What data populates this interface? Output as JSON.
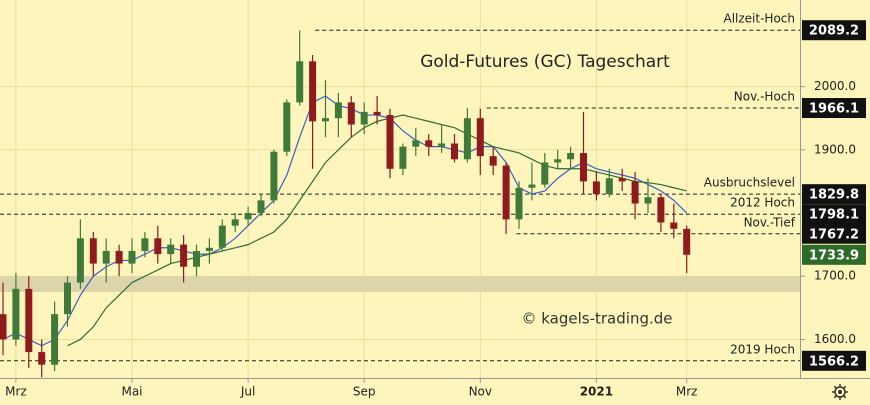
{
  "chart_data": {
    "type": "candlestick",
    "title": "Gold-Futures (GC) Tageschart",
    "watermark": "© kagels-trading.de",
    "categories": [
      null,
      "Mrz",
      null,
      null,
      null,
      null,
      null,
      null,
      null,
      null,
      "Mai",
      null,
      null,
      null,
      null,
      null,
      null,
      null,
      null,
      "Jul",
      null,
      null,
      null,
      null,
      null,
      null,
      null,
      null,
      "Sep",
      null,
      null,
      null,
      null,
      null,
      null,
      null,
      null,
      "Nov",
      null,
      null,
      null,
      null,
      null,
      null,
      null,
      null,
      "2021",
      null,
      null,
      null,
      null,
      null,
      null,
      "Mrz"
    ],
    "open": [
      1640,
      1600,
      1680,
      1580,
      1560,
      1640,
      1690,
      1760,
      1720,
      1740,
      1720,
      1740,
      1760,
      1735,
      1750,
      1715,
      1740,
      1745,
      1780,
      1790,
      1800,
      1820,
      1897,
      1975,
      2040,
      1945,
      1950,
      1975,
      1940,
      1960,
      1955,
      1870,
      1905,
      1915,
      1905,
      1910,
      1885,
      1950,
      1890,
      1875,
      1790,
      1840,
      1845,
      1880,
      1885,
      1895,
      1850,
      1830,
      1855,
      1850,
      1815,
      1825,
      1785,
      1775
    ],
    "high": [
      1690,
      1705,
      1700,
      1600,
      1660,
      1700,
      1790,
      1770,
      1760,
      1750,
      1760,
      1770,
      1780,
      1760,
      1765,
      1750,
      1760,
      1790,
      1800,
      1810,
      1830,
      1900,
      1980,
      2089,
      2050,
      2010,
      1990,
      1985,
      1975,
      1985,
      1965,
      1910,
      1935,
      1925,
      1940,
      1925,
      1966,
      1965,
      1905,
      1880,
      1850,
      1880,
      1895,
      1900,
      1905,
      1960,
      1865,
      1870,
      1870,
      1865,
      1855,
      1830,
      1815,
      1780
    ],
    "low": [
      1575,
      1590,
      1555,
      1540,
      1550,
      1620,
      1680,
      1700,
      1690,
      1700,
      1705,
      1730,
      1720,
      1720,
      1690,
      1700,
      1720,
      1740,
      1770,
      1780,
      1795,
      1815,
      1890,
      1970,
      1870,
      1920,
      1920,
      1920,
      1925,
      1940,
      1855,
      1860,
      1890,
      1890,
      1895,
      1880,
      1880,
      1860,
      1860,
      1767,
      1775,
      1820,
      1840,
      1870,
      1870,
      1830,
      1820,
      1825,
      1835,
      1790,
      1800,
      1770,
      1760,
      1705
    ],
    "close": [
      1600,
      1680,
      1580,
      1560,
      1640,
      1690,
      1760,
      1720,
      1740,
      1720,
      1740,
      1760,
      1735,
      1750,
      1715,
      1740,
      1745,
      1780,
      1790,
      1800,
      1820,
      1897,
      1975,
      2040,
      1945,
      1950,
      1975,
      1940,
      1960,
      1955,
      1870,
      1905,
      1915,
      1905,
      1910,
      1885,
      1950,
      1890,
      1875,
      1790,
      1840,
      1845,
      1880,
      1885,
      1895,
      1850,
      1830,
      1855,
      1850,
      1815,
      1825,
      1785,
      1775,
      1734
    ],
    "up_color": "#3f7a3a",
    "down_color": "#8e1c1c",
    "lines": [
      {
        "color": "#3b5fc8",
        "values": [
          1600,
          1610,
          1600,
          1590,
          1600,
          1630,
          1670,
          1700,
          1715,
          1725,
          1725,
          1735,
          1745,
          1745,
          1740,
          1735,
          1735,
          1745,
          1760,
          1780,
          1800,
          1820,
          1860,
          1920,
          1975,
          1985,
          1970,
          1965,
          1955,
          1955,
          1950,
          1930,
          1915,
          1905,
          1905,
          1900,
          1895,
          1905,
          1905,
          1880,
          1840,
          1830,
          1835,
          1855,
          1870,
          1880,
          1870,
          1865,
          1860,
          1855,
          1845,
          1835,
          1820,
          1800
        ]
      },
      {
        "color": "#2f6a3a",
        "values": [
          null,
          null,
          null,
          null,
          null,
          1590,
          1600,
          1620,
          1650,
          1670,
          1690,
          1700,
          1710,
          1720,
          1725,
          1730,
          1735,
          1740,
          1745,
          1750,
          1760,
          1770,
          1790,
          1820,
          1850,
          1880,
          1900,
          1920,
          1935,
          1945,
          1950,
          1955,
          1950,
          1945,
          1940,
          1935,
          1925,
          1915,
          1905,
          1900,
          1895,
          1885,
          1875,
          1870,
          1870,
          1870,
          1865,
          1860,
          1855,
          1850,
          1848,
          1845,
          1840,
          1835
        ]
      }
    ],
    "support_zone": [
      1675,
      1700
    ],
    "levels": [
      {
        "name": "Allzeit-Hoch",
        "value": 2089.2
      },
      {
        "name": "Nov.-Hoch",
        "value": 1966.1
      },
      {
        "name": "Ausbruchslevel",
        "value": 1829.8
      },
      {
        "name": "2012 Hoch",
        "value": 1798.1
      },
      {
        "name": "Nov.-Tief",
        "value": 1767.2
      },
      {
        "value": 1733.9,
        "color": "#2e6b2a"
      },
      {
        "name": "2019 Hoch",
        "value": 1566.2
      }
    ],
    "ylim": [
      1539,
      2137
    ],
    "yticks": [
      {
        "value": 1600,
        "label": "1600.0"
      },
      {
        "value": 1700,
        "label": "1700.0"
      },
      {
        "value": 1900,
        "label": "1900.0"
      },
      {
        "value": 2000,
        "label": "2000.0"
      }
    ],
    "grid": true
  }
}
